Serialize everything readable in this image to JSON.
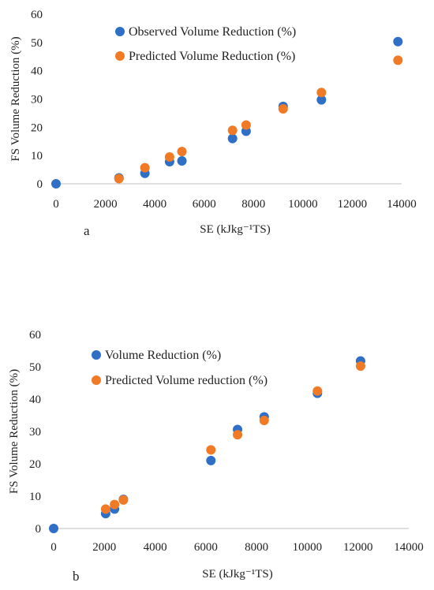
{
  "chart_data": [
    {
      "type": "scatter",
      "panel_label": "a",
      "xlabel": "SE (kJkg⁻¹TS)",
      "ylabel": "FS Volume Reduction (%)",
      "xlim": [
        0,
        14000
      ],
      "ylim": [
        0,
        60
      ],
      "xticks": [
        "0",
        "2000",
        "4000",
        "6000",
        "8000",
        "10000",
        "12000",
        "14000"
      ],
      "yticks": [
        "0",
        "10",
        "20",
        "30",
        "40",
        "50",
        "60"
      ],
      "grid": false,
      "legend_position": "top-center",
      "series": [
        {
          "name": "Observed Volume Reduction (%)",
          "color": "#2f6fc6",
          "points": [
            {
              "x": 0,
              "y": 0
            },
            {
              "x": 2550,
              "y": 2.1
            },
            {
              "x": 3600,
              "y": 3.7
            },
            {
              "x": 4600,
              "y": 7.8
            },
            {
              "x": 5100,
              "y": 8.1
            },
            {
              "x": 7150,
              "y": 16.0
            },
            {
              "x": 7700,
              "y": 18.6
            },
            {
              "x": 9200,
              "y": 27.4
            },
            {
              "x": 10750,
              "y": 29.7
            },
            {
              "x": 13850,
              "y": 50.3
            }
          ]
        },
        {
          "name": "Predicted Volume Reduction (%)",
          "color": "#f07a26",
          "points": [
            {
              "x": 2550,
              "y": 1.8
            },
            {
              "x": 3600,
              "y": 5.7
            },
            {
              "x": 4600,
              "y": 9.5
            },
            {
              "x": 5100,
              "y": 11.4
            },
            {
              "x": 7150,
              "y": 18.9
            },
            {
              "x": 7700,
              "y": 20.8
            },
            {
              "x": 9200,
              "y": 26.5
            },
            {
              "x": 10750,
              "y": 32.3
            },
            {
              "x": 13850,
              "y": 43.7
            }
          ]
        }
      ]
    },
    {
      "type": "scatter",
      "panel_label": "b",
      "xlabel": "SE (kJkg⁻¹TS)",
      "ylabel": "FS Volume Reduction (%)",
      "xlim": [
        0,
        14000
      ],
      "ylim": [
        0,
        60
      ],
      "xticks": [
        "0",
        "2000",
        "4000",
        "6000",
        "8000",
        "10000",
        "12000",
        "14000"
      ],
      "yticks": [
        "0",
        "10",
        "20",
        "30",
        "40",
        "50",
        "60"
      ],
      "grid": false,
      "legend_position": "top-left",
      "series": [
        {
          "name": "Volume Reduction (%)",
          "color": "#2f6fc6",
          "points": [
            {
              "x": 0,
              "y": 0
            },
            {
              "x": 2050,
              "y": 4.6
            },
            {
              "x": 2400,
              "y": 6.0
            },
            {
              "x": 2750,
              "y": 9.0
            },
            {
              "x": 6200,
              "y": 21.0
            },
            {
              "x": 7250,
              "y": 30.6
            },
            {
              "x": 8300,
              "y": 34.5
            },
            {
              "x": 10400,
              "y": 41.8
            },
            {
              "x": 12100,
              "y": 51.8
            }
          ]
        },
        {
          "name": "Predicted Volume reduction (%)",
          "color": "#f07a26",
          "points": [
            {
              "x": 2050,
              "y": 6.0
            },
            {
              "x": 2400,
              "y": 7.4
            },
            {
              "x": 2750,
              "y": 8.8
            },
            {
              "x": 6200,
              "y": 24.3
            },
            {
              "x": 7250,
              "y": 29.0
            },
            {
              "x": 8300,
              "y": 33.4
            },
            {
              "x": 10400,
              "y": 42.5
            },
            {
              "x": 12100,
              "y": 50.2
            }
          ]
        }
      ]
    }
  ]
}
